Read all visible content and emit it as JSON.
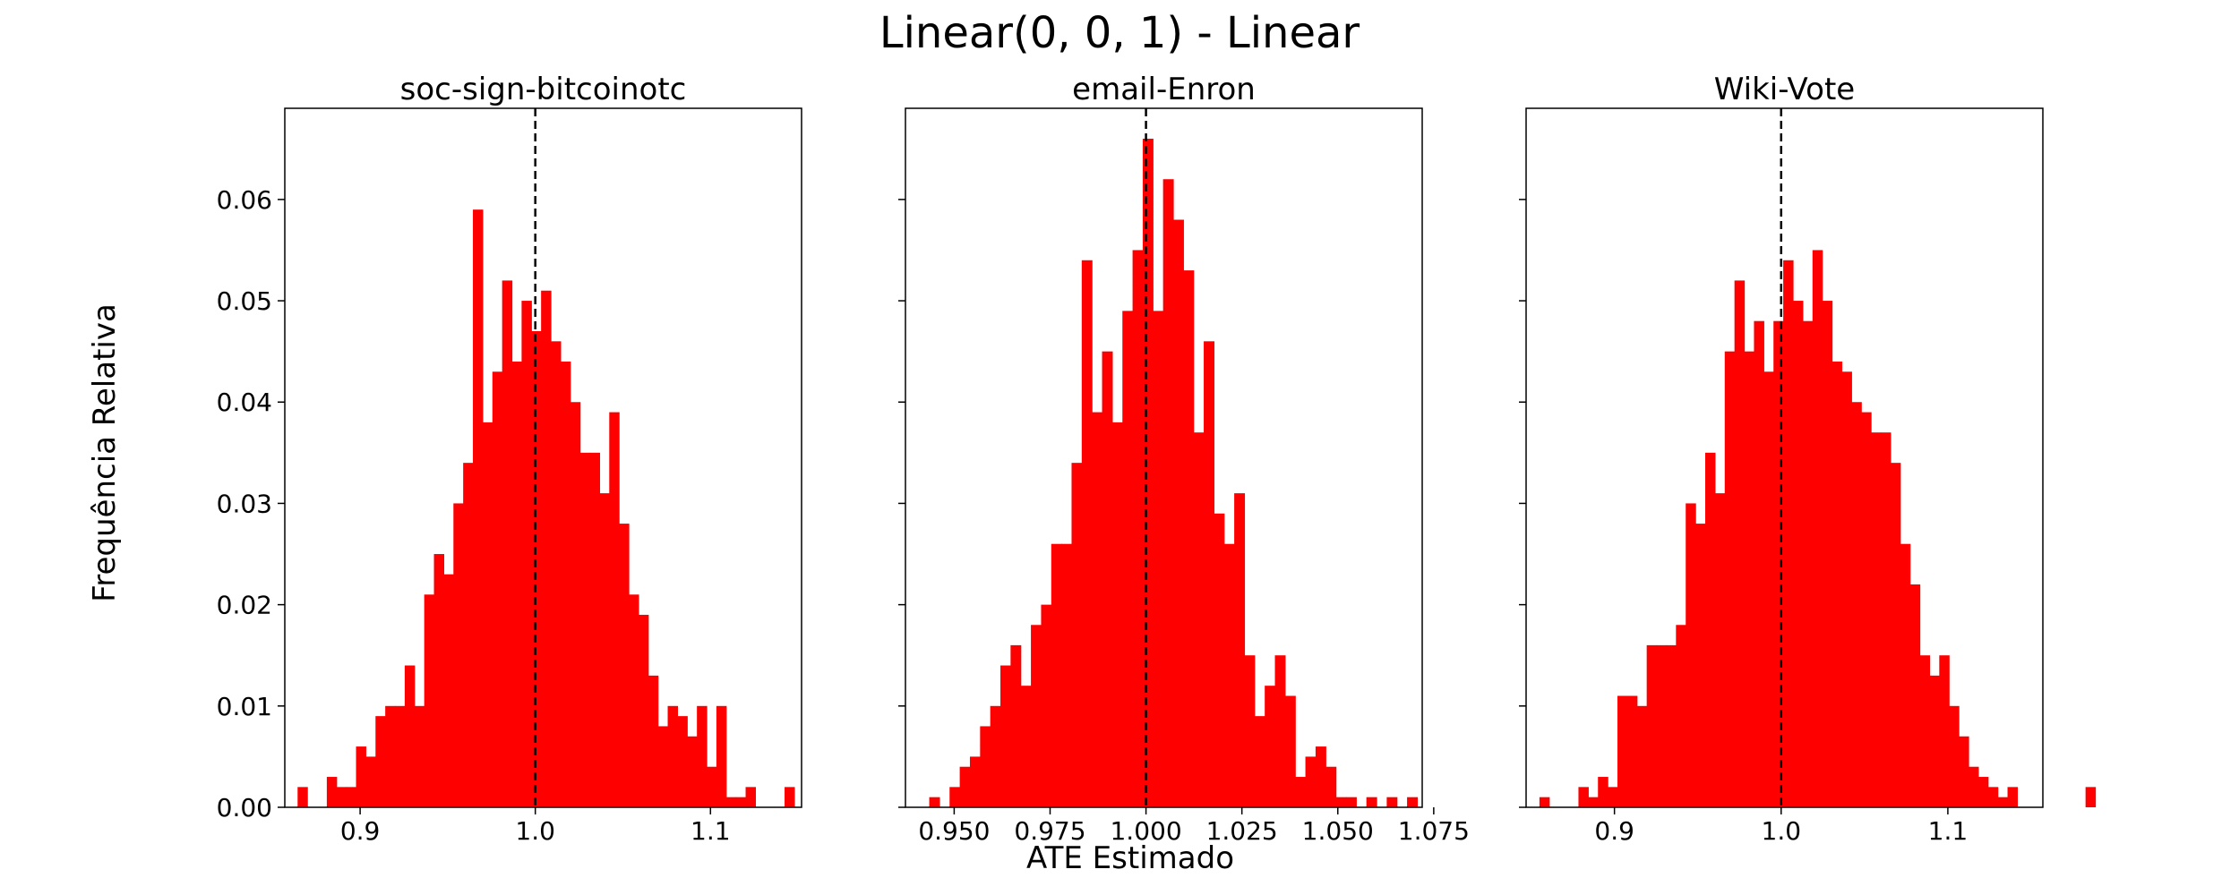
{
  "figure": {
    "title": "Linear(0, 0, 1) - Linear",
    "xlabel": "ATE Estimado",
    "ylabel": "Frequência Relativa",
    "bar_color": "#ff0000",
    "reference_line": {
      "x": 1.0,
      "style": "dashed",
      "color": "#000000"
    }
  },
  "chart_data": [
    {
      "type": "bar",
      "title": "soc-sign-bitcoinotc",
      "xlim": [
        0.857,
        1.152
      ],
      "ylim": [
        0,
        0.069
      ],
      "xticks": [
        0.9,
        1.0,
        1.1
      ],
      "xtick_labels": [
        "0.9",
        "1.0",
        "1.1"
      ],
      "yticks": [
        0.0,
        0.01,
        0.02,
        0.03,
        0.04,
        0.05,
        0.06
      ],
      "ytick_labels": [
        "0.00",
        "0.01",
        "0.02",
        "0.03",
        "0.04",
        "0.05",
        "0.06"
      ],
      "bin_start": 0.8643,
      "bin_width": 0.00556,
      "values": [
        0.002,
        0,
        0,
        0.003,
        0.002,
        0.002,
        0.006,
        0.005,
        0.009,
        0.01,
        0.01,
        0.014,
        0.01,
        0.021,
        0.025,
        0.023,
        0.03,
        0.034,
        0.059,
        0.038,
        0.043,
        0.052,
        0.044,
        0.05,
        0.047,
        0.051,
        0.046,
        0.044,
        0.04,
        0.035,
        0.035,
        0.031,
        0.039,
        0.028,
        0.021,
        0.019,
        0.013,
        0.008,
        0.01,
        0.009,
        0.007,
        0.01,
        0.004,
        0.01,
        0.001,
        0.001,
        0.002,
        0,
        0,
        0,
        0.002
      ],
      "reference_line": 1.0
    },
    {
      "type": "bar",
      "title": "email-Enron",
      "xlim": [
        0.9373,
        1.072
      ],
      "ylim": [
        0,
        0.069
      ],
      "xticks": [
        0.95,
        0.975,
        1.0,
        1.025,
        1.05,
        1.075
      ],
      "xtick_labels": [
        "0.950",
        "0.975",
        "1.000",
        "1.025",
        "1.050",
        "1.075"
      ],
      "yticks": [
        0.0,
        0.01,
        0.02,
        0.03,
        0.04,
        0.05,
        0.06
      ],
      "ytick_labels": [],
      "bin_start": 0.9435,
      "bin_width": 0.00265,
      "values": [
        0.001,
        0,
        0.002,
        0.004,
        0.005,
        0.008,
        0.01,
        0.014,
        0.016,
        0.012,
        0.018,
        0.02,
        0.026,
        0.026,
        0.034,
        0.054,
        0.039,
        0.045,
        0.038,
        0.049,
        0.055,
        0.066,
        0.049,
        0.062,
        0.058,
        0.053,
        0.037,
        0.046,
        0.029,
        0.026,
        0.031,
        0.015,
        0.009,
        0.012,
        0.015,
        0.011,
        0.003,
        0.005,
        0.006,
        0.004,
        0.001,
        0.001,
        0,
        0.001,
        0,
        0.001,
        0,
        0.001
      ],
      "reference_line": 1.0
    },
    {
      "type": "bar",
      "title": "Wiki-Vote",
      "xlim": [
        0.847,
        1.157
      ],
      "ylim": [
        0,
        0.069
      ],
      "xticks": [
        0.9,
        1.0,
        1.1
      ],
      "xtick_labels": [
        "0.9",
        "1.0",
        "1.1"
      ],
      "yticks": [
        0.0,
        0.01,
        0.02,
        0.03,
        0.04,
        0.05,
        0.06
      ],
      "ytick_labels": [],
      "bin_start": 0.855,
      "bin_width": 0.00585,
      "values": [
        0.001,
        0,
        0,
        0,
        0.002,
        0.001,
        0.003,
        0.002,
        0.011,
        0.011,
        0.01,
        0.016,
        0.016,
        0.016,
        0.018,
        0.03,
        0.028,
        0.035,
        0.031,
        0.045,
        0.052,
        0.045,
        0.048,
        0.043,
        0.048,
        0.054,
        0.05,
        0.048,
        0.055,
        0.05,
        0.044,
        0.043,
        0.04,
        0.039,
        0.037,
        0.037,
        0.034,
        0.026,
        0.022,
        0.015,
        0.013,
        0.015,
        0.01,
        0.007,
        0.004,
        0.003,
        0.002,
        0.001,
        0.002,
        0,
        0,
        0,
        0,
        0,
        0,
        0,
        0.002
      ],
      "reference_line": 1.0
    }
  ]
}
